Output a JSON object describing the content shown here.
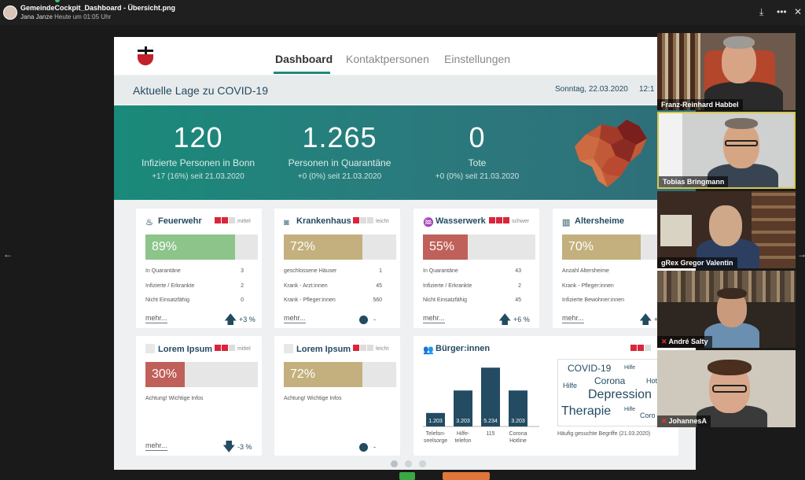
{
  "viewer": {
    "file_name": "GemeindeCockpit_Dashboard - Übersicht.png",
    "uploader": "Jana Janze",
    "uploaded": "Heute um 01:05 Uhr"
  },
  "dashboard": {
    "tabs": [
      {
        "label": "Dashboard",
        "active": true
      },
      {
        "label": "Kontaktpersonen",
        "active": false
      },
      {
        "label": "Einstellungen",
        "active": false
      }
    ],
    "title": "Aktuelle Lage zu COVID-19",
    "date": "Sonntag, 22.03.2020",
    "time": "12:1",
    "stats": [
      {
        "value": "120",
        "label": "Infizierte Personen in Bonn",
        "sub": "+17 (16%) seit 21.03.2020"
      },
      {
        "value": "1.265",
        "label": "Personen in Quarantäne",
        "sub": "+0 (0%) seit 21.03.2020"
      },
      {
        "value": "0",
        "label": "Tote",
        "sub": "+0 (0%) seit 21.03.2020"
      }
    ],
    "cards": [
      {
        "title": "Feuerwehr",
        "icon": "flame-icon",
        "severity": "mittel",
        "level": 2,
        "percent": "89%",
        "fill": 0.8,
        "color": "#8cc48a",
        "rows": [
          [
            "In Quarantäne",
            "3"
          ],
          [
            "Infizierte / Erkrankte",
            "2"
          ],
          [
            "Nicht Einsatzfähig",
            "0"
          ]
        ],
        "more": "mehr...",
        "trend": "+3 %",
        "trend_dir": "up"
      },
      {
        "title": "Krankenhaus",
        "icon": "camera-icon",
        "severity": "leicht",
        "level": 1,
        "percent": "72%",
        "fill": 0.7,
        "color": "#c4b07e",
        "rows": [
          [
            "geschlossene Häuser",
            "1"
          ],
          [
            "Krank - Arzt:innen",
            "45"
          ],
          [
            "Krank - Pfleger:innen",
            "560"
          ]
        ],
        "more": "mehr...",
        "trend": "-",
        "trend_dir": "flat"
      },
      {
        "title": "Wasserwerk",
        "icon": "water-drops-icon",
        "severity": "schwer",
        "level": 3,
        "percent": "55%",
        "fill": 0.4,
        "color": "#c0605a",
        "rows": [
          [
            "In Quarantäne",
            "43"
          ],
          [
            "Infizierte / Erkrankte",
            "2"
          ],
          [
            "Nicht Einsatzfähig",
            "45"
          ]
        ],
        "more": "mehr...",
        "trend": "+6 %",
        "trend_dir": "up"
      },
      {
        "title": "Altersheime",
        "icon": "building-icon",
        "severity": "",
        "level": 0,
        "percent": "70%",
        "fill": 0.7,
        "color": "#c4b07e",
        "rows": [
          [
            "Anzahl Altersheime",
            ""
          ],
          [
            "Krank - Pfleger:innen",
            ""
          ],
          [
            "Infizierte Bewohner:innen",
            ""
          ]
        ],
        "more": "mehr...",
        "trend": "+",
        "trend_dir": "up"
      },
      {
        "title": "Lorem Ipsum",
        "icon": "",
        "severity": "mittel",
        "level": 2,
        "percent": "30%",
        "fill": 0.35,
        "color": "#c0605a",
        "note": "Achtung! Wichtige Infos",
        "more": "mehr...",
        "trend": "-3 %",
        "trend_dir": "down"
      },
      {
        "title": "Lorem Ipsum",
        "icon": "",
        "severity": "leicht",
        "level": 1,
        "percent": "72%",
        "fill": 0.7,
        "color": "#c4b07e",
        "note": "Achtung! Wichtige Infos",
        "more": "",
        "trend": "-",
        "trend_dir": "flat"
      }
    ],
    "buerger": {
      "title": "Bürger:innen",
      "chart_data": {
        "type": "bar",
        "categories": [
          "Telefon-seelsorge",
          "Hilfe-telefon",
          "115",
          "Corona Hotline"
        ],
        "values": [
          1203,
          3203,
          5234,
          3203
        ],
        "value_labels": [
          "1.203",
          "3.203",
          "5.234",
          "3.203"
        ],
        "ylim": [
          0,
          5600
        ],
        "color": "#234b62"
      },
      "cloud_caption": "Häufig gesuchte Begriffe (21.03.2020)",
      "cloud_words": [
        "COVID-19",
        "Hilfe",
        "Corona",
        "Hotlin",
        "Hilfe",
        "Depression",
        "Therapie",
        "Hilfe",
        "Coro"
      ]
    }
  },
  "participants": [
    {
      "name": "Franz-Reinhard Habbel",
      "muted": false
    },
    {
      "name": "Tobias Bringmann",
      "muted": false
    },
    {
      "name": "gRex Gregor Valentin",
      "muted": false
    },
    {
      "name": "André Salty",
      "muted": true
    },
    {
      "name": "JohannesA",
      "muted": true
    }
  ]
}
